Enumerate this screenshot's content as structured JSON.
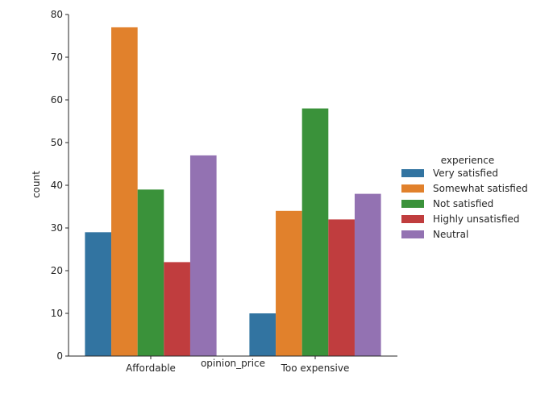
{
  "chart_data": {
    "type": "bar",
    "categories": [
      "Affordable",
      "Too expensive"
    ],
    "series": [
      {
        "name": "Very satisfied",
        "values": [
          29,
          10
        ],
        "color": "#3274a1"
      },
      {
        "name": "Somewhat satisfied",
        "values": [
          77,
          34
        ],
        "color": "#e1812c"
      },
      {
        "name": "Not satisfied",
        "values": [
          39,
          58
        ],
        "color": "#3a923a"
      },
      {
        "name": "Highly unsatisfied",
        "values": [
          22,
          32
        ],
        "color": "#c03d3e"
      },
      {
        "name": "Neutral",
        "values": [
          47,
          38
        ],
        "color": "#9372b2"
      }
    ],
    "xlabel": "opinion_price",
    "ylabel": "count",
    "ylim": [
      0,
      80
    ],
    "yticks": [
      0,
      10,
      20,
      30,
      40,
      50,
      60,
      70,
      80
    ],
    "legend": {
      "title": "experience",
      "placement": "right"
    },
    "grid": false
  }
}
